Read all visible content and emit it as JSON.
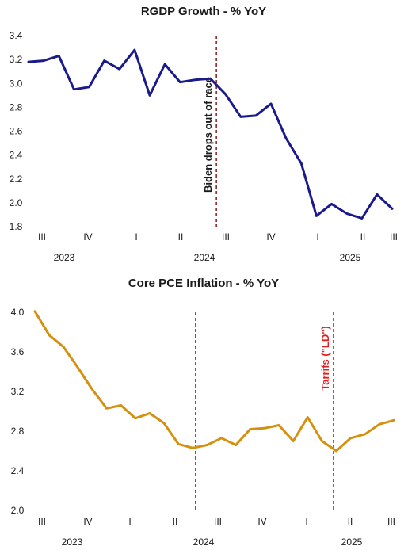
{
  "chart_data": [
    {
      "type": "line",
      "title": "RGDP Growth - % YoY",
      "ylim": [
        1.8,
        3.4
      ],
      "yticks": [
        "3.4",
        "3.2",
        "3.0",
        "2.8",
        "2.6",
        "2.4",
        "2.2",
        "2.0",
        "1.8"
      ],
      "x_quarter_labels": [
        "III",
        "IV",
        "I",
        "II",
        "III",
        "IV",
        "I",
        "II",
        "III"
      ],
      "x_year_labels": [
        "2023",
        "2024",
        "2025"
      ],
      "series": [
        {
          "color": "#1a1a8c",
          "values": [
            3.18,
            3.19,
            3.23,
            2.95,
            2.97,
            3.19,
            3.12,
            3.28,
            2.9,
            3.16,
            3.01,
            3.03,
            3.04,
            2.91,
            2.72,
            2.73,
            2.83,
            2.54,
            2.33,
            1.89,
            1.99,
            1.91,
            1.87,
            2.07,
            1.95
          ]
        }
      ],
      "annotation": {
        "text": "Biden drops out of race",
        "x_index": 12.4,
        "color": "#8b1a1a"
      },
      "grid": false
    },
    {
      "type": "line",
      "title": "Core PCE Inflation - % YoY",
      "ylim": [
        2.0,
        4.0
      ],
      "yticks": [
        "4.0",
        "3.6",
        "3.2",
        "2.8",
        "2.4",
        "2.0"
      ],
      "x_quarter_labels": [
        "III",
        "IV",
        "I",
        "II",
        "III",
        "IV",
        "I",
        "II",
        "III"
      ],
      "x_year_labels": [
        "2023",
        "2024",
        "2025"
      ],
      "series": [
        {
          "color": "#d4900e",
          "values": [
            4.01,
            3.77,
            3.65,
            3.44,
            3.22,
            3.03,
            3.06,
            2.93,
            2.98,
            2.88,
            2.67,
            2.63,
            2.66,
            2.73,
            2.66,
            2.82,
            2.83,
            2.86,
            2.7,
            2.94,
            2.7,
            2.6,
            2.73,
            2.77,
            2.87,
            2.91
          ]
        }
      ],
      "annotations": [
        {
          "text": "",
          "x_index": 11.2,
          "color": "#8b1a1a"
        },
        {
          "text": "Tarrifs (\"LD\")",
          "x_index": 20.8,
          "color": "#e02020"
        }
      ],
      "grid": false
    }
  ]
}
